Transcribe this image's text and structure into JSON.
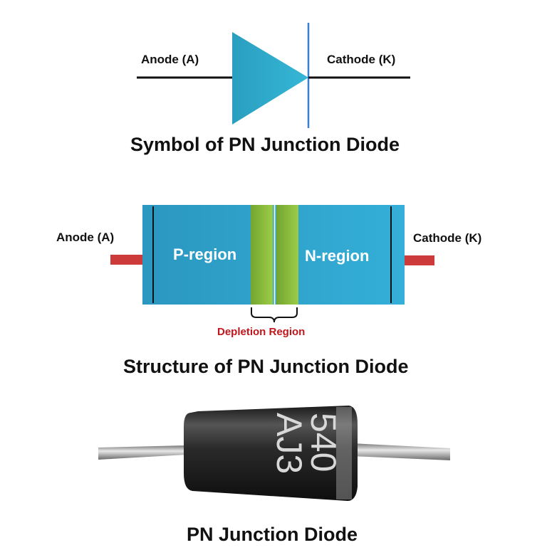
{
  "symbol": {
    "anode_label": "Anode (A)",
    "cathode_label": "Cathode (K)",
    "caption": "Symbol of PN Junction Diode"
  },
  "structure": {
    "anode_label": "Anode (A)",
    "cathode_label": "Cathode (K)",
    "p_region_label": "P-region",
    "n_region_label": "N-region",
    "depletion_label": "Depletion Region",
    "caption": "Structure of PN Junction Diode"
  },
  "photo": {
    "marking_line1": "540",
    "marking_line2": "AJ3",
    "caption": "PN Junction Diode"
  },
  "colors": {
    "triangle": "#2aa8c8",
    "cathode_bar": "#3b7fd0",
    "body": "#2ea3cc",
    "depletion": "#8ab83a",
    "lead": "#cc3a3a",
    "depletion_text": "#c0161c",
    "diode_body": "#2b2b2b"
  }
}
